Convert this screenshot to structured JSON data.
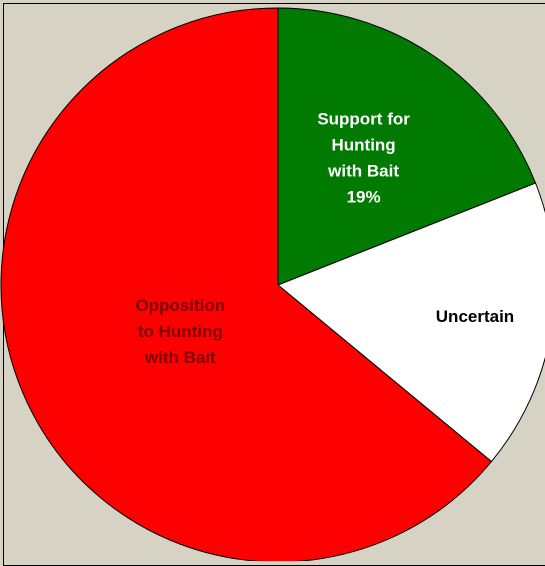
{
  "chart_data": {
    "type": "pie",
    "title": "",
    "slices": [
      {
        "name": "support",
        "label_lines": [
          "Support for",
          "Hunting",
          "with Bait",
          "19%"
        ],
        "value": 19,
        "color": "#007a00",
        "text_color": "#ffffff"
      },
      {
        "name": "uncertain",
        "label_lines": [
          "Uncertain"
        ],
        "value": 17,
        "color": "#ffffff",
        "text_color": "#000000"
      },
      {
        "name": "opposition",
        "label_lines": [
          "Opposition",
          "to Hunting",
          "with Bait"
        ],
        "value": 64,
        "color": "#ff0000",
        "text_color": "#800000"
      }
    ],
    "start_angle_deg": 0,
    "direction": "clockwise",
    "legend": "none",
    "background_color": "#d6d3c4"
  }
}
